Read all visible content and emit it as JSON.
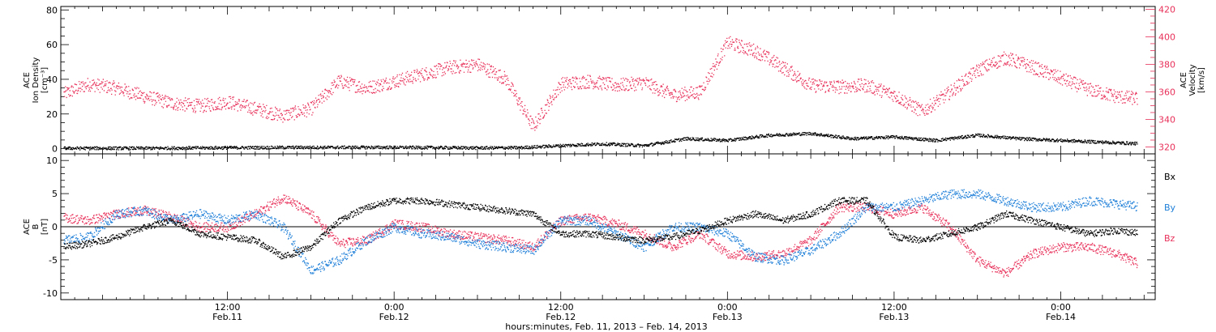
{
  "colors": {
    "black": "#000000",
    "red": "#e8305a",
    "blue": "#1e7fd8"
  },
  "x_axis": {
    "caption": "hours:minutes, Feb. 11, 2013 – Feb. 14, 2013",
    "ticks": [
      {
        "t": 12,
        "time": "12:00",
        "date": "Feb.11"
      },
      {
        "t": 24,
        "time": "0:00",
        "date": "Feb.12"
      },
      {
        "t": 36,
        "time": "12:00",
        "date": "Feb.12"
      },
      {
        "t": 48,
        "time": "0:00",
        "date": "Feb.13"
      },
      {
        "t": 60,
        "time": "12:00",
        "date": "Feb.13"
      },
      {
        "t": 72,
        "time": "0:00",
        "date": "Feb.14"
      }
    ]
  },
  "chart_data": [
    {
      "type": "scatter",
      "title": "",
      "xlim": [
        0,
        78.8
      ],
      "ylabel": [
        "ACE",
        "Ion Density",
        "[cm⁻³]"
      ],
      "ylim": [
        -3,
        82
      ],
      "yticks": [
        0,
        20,
        40,
        60,
        80
      ],
      "y2label": [
        "ACE",
        "Velocity",
        "[km/s]"
      ],
      "y2lim": [
        315,
        422
      ],
      "y2ticks": [
        320,
        340,
        360,
        380,
        400,
        420
      ],
      "grid": false,
      "series": [
        {
          "name": "Ion Density",
          "axis": "left",
          "color": "#000000",
          "x": [
            0,
            6,
            12,
            18,
            24,
            30,
            33,
            36,
            39,
            42,
            45,
            48,
            51,
            54,
            57,
            60,
            63,
            66,
            69,
            72,
            75,
            78
          ],
          "y": [
            0.5,
            0.5,
            0.8,
            1,
            1,
            0.7,
            0.8,
            2,
            3,
            2,
            6,
            5,
            8,
            9,
            6,
            7,
            5,
            8,
            6,
            5,
            4,
            3
          ]
        },
        {
          "name": "Velocity",
          "axis": "right",
          "color": "#e8305a",
          "x": [
            0,
            2,
            4,
            6,
            8,
            10,
            12,
            14,
            16,
            18,
            20,
            22,
            24,
            26,
            28,
            30,
            32,
            34,
            36,
            38,
            40,
            42,
            44,
            46,
            48,
            50,
            52,
            54,
            56,
            58,
            60,
            62,
            64,
            66,
            68,
            70,
            72,
            74,
            76,
            78
          ],
          "y": [
            358,
            366,
            363,
            357,
            352,
            350,
            353,
            348,
            343,
            348,
            368,
            363,
            368,
            373,
            378,
            380,
            370,
            335,
            366,
            368,
            365,
            367,
            358,
            360,
            396,
            390,
            378,
            365,
            364,
            365,
            358,
            346,
            360,
            376,
            385,
            378,
            370,
            362,
            357,
            355
          ]
        }
      ]
    },
    {
      "type": "scatter",
      "title": "",
      "xlim": [
        0,
        78.8
      ],
      "ylabel": [
        "ACE",
        "B",
        "[nT]"
      ],
      "ylim": [
        -11,
        11
      ],
      "yticks": [
        -10,
        -5,
        0,
        5,
        10
      ],
      "zero_line": true,
      "grid": false,
      "legend": "right",
      "series": [
        {
          "name": "Bx",
          "color": "#000000",
          "x": [
            0,
            2,
            4,
            6,
            8,
            10,
            12,
            14,
            16,
            18,
            20,
            22,
            24,
            26,
            28,
            30,
            32,
            34,
            36,
            38,
            40,
            42,
            44,
            46,
            48,
            50,
            52,
            54,
            56,
            58,
            60,
            62,
            64,
            66,
            68,
            70,
            72,
            74,
            76,
            78
          ],
          "y": [
            -3,
            -2.5,
            -1.5,
            0,
            1,
            -1,
            -1.5,
            -2,
            -4.5,
            -3,
            1,
            3,
            4,
            4,
            3.5,
            3,
            2.5,
            2,
            -1,
            -1,
            -1.5,
            -2,
            -1.5,
            -0.5,
            1,
            2,
            1,
            2,
            4,
            4,
            -1.5,
            -2,
            -1,
            0,
            2,
            1,
            0,
            -1,
            -0.5,
            -1
          ]
        },
        {
          "name": "By",
          "color": "#1e7fd8",
          "x": [
            0,
            2,
            4,
            6,
            8,
            10,
            12,
            14,
            16,
            18,
            20,
            22,
            24,
            26,
            28,
            30,
            32,
            34,
            36,
            38,
            40,
            42,
            44,
            46,
            48,
            50,
            52,
            54,
            56,
            58,
            60,
            62,
            64,
            66,
            68,
            70,
            72,
            74,
            76,
            78
          ],
          "y": [
            -2,
            -1.5,
            2,
            2.5,
            1,
            2,
            1,
            2,
            0,
            -6.5,
            -5,
            -2,
            0,
            -1,
            -1.5,
            -2.5,
            -3,
            -3.5,
            1,
            1,
            -1,
            -3,
            0,
            0,
            -1,
            -4.5,
            -5,
            -3.5,
            -1,
            3,
            3,
            4,
            5,
            5,
            4,
            3,
            3,
            4,
            3.5,
            3
          ]
        },
        {
          "name": "Bz",
          "color": "#e8305a",
          "x": [
            0,
            2,
            4,
            6,
            8,
            10,
            12,
            14,
            16,
            18,
            20,
            22,
            24,
            26,
            28,
            30,
            32,
            34,
            36,
            38,
            40,
            42,
            44,
            46,
            48,
            50,
            52,
            54,
            56,
            58,
            60,
            62,
            64,
            66,
            68,
            70,
            72,
            74,
            76,
            78
          ],
          "y": [
            1.5,
            1,
            2,
            2.5,
            1.5,
            0,
            0,
            2,
            4.5,
            2,
            -2.5,
            -2,
            0.5,
            0,
            -1,
            -1.5,
            -2,
            -3,
            1,
            1.5,
            0.5,
            -1,
            -3,
            -1,
            -4,
            -4.5,
            -4,
            -2,
            3,
            3,
            2,
            3,
            0,
            -5,
            -7,
            -4,
            -3,
            -3,
            -4,
            -6
          ]
        }
      ]
    }
  ]
}
